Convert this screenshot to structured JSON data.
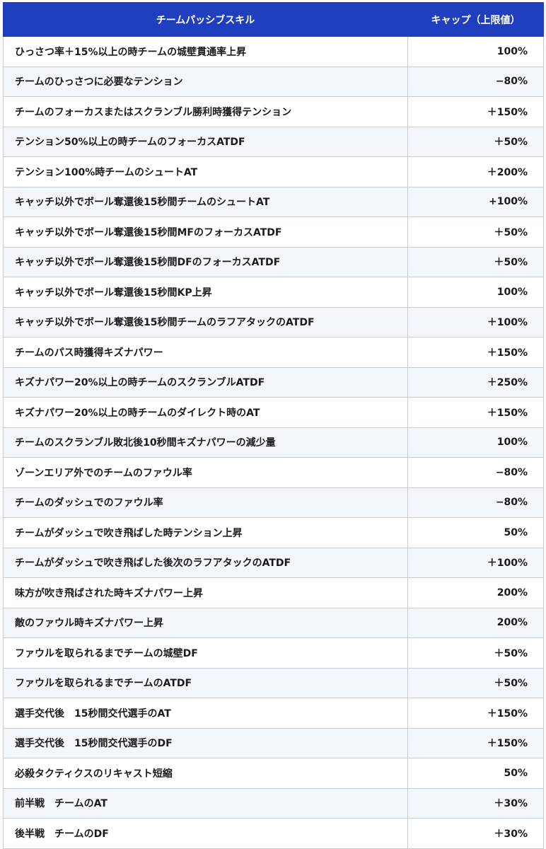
{
  "header": {
    "skill_label": "チームパッシブスキル",
    "cap_label": "キャップ（上限値）"
  },
  "colors": {
    "header_bg": "#1f3fbf",
    "header_text": "#ffffff",
    "row_alt": "#f3f6fb",
    "border": "#c9ccd3"
  },
  "rows": [
    {
      "skill": "ひっさつ率＋15%以上の時チームの城壁貫通率上昇",
      "cap": "100%"
    },
    {
      "skill": "チームのひっさつに必要なテンション",
      "cap": "−80%"
    },
    {
      "skill": "チームのフォーカスまたはスクランブル勝利時獲得テンション",
      "cap": "＋150%"
    },
    {
      "skill": "テンション50%以上の時チームのフォーカスATDF",
      "cap": "＋50%"
    },
    {
      "skill": "テンション100%時チームのシュートAT",
      "cap": "＋200%"
    },
    {
      "skill": "キャッチ以外でボール奪還後15秒間チームのシュートAT",
      "cap": "+100%"
    },
    {
      "skill": "キャッチ以外でボール奪還後15秒間MFのフォーカスATDF",
      "cap": "＋50%"
    },
    {
      "skill": "キャッチ以外でボール奪還後15秒間DFのフォーカスATDF",
      "cap": "＋50%"
    },
    {
      "skill": "キャッチ以外でボール奪還後15秒間KP上昇",
      "cap": "100%"
    },
    {
      "skill": "キャッチ以外でボール奪還後15秒間チームのラフアタックのATDF",
      "cap": "＋100%"
    },
    {
      "skill": "チームのパス時獲得キズナパワー",
      "cap": "＋150%"
    },
    {
      "skill": "キズナパワー20%以上の時チームのスクランブルATDF",
      "cap": "＋250%"
    },
    {
      "skill": "キズナパワー20%以上の時チームのダイレクト時のAT",
      "cap": "＋150%"
    },
    {
      "skill": "チームのスクランブル敗北後10秒間キズナパワーの減少量",
      "cap": "100%"
    },
    {
      "skill": "ゾーンエリア外でのチームのファウル率",
      "cap": "−80%"
    },
    {
      "skill": "チームのダッシュでのファウル率",
      "cap": "−80%"
    },
    {
      "skill": "チームがダッシュで吹き飛ばした時テンション上昇",
      "cap": "50%"
    },
    {
      "skill": "チームがダッシュで吹き飛ばした後次のラフアタックのATDF",
      "cap": "＋100%"
    },
    {
      "skill": "味方が吹き飛ばされた時キズナパワー上昇",
      "cap": "200%"
    },
    {
      "skill": "敵のファウル時キズナパワー上昇",
      "cap": "200%"
    },
    {
      "skill": "ファウルを取られるまでチームの城壁DF",
      "cap": "＋50%"
    },
    {
      "skill": "ファウルを取られるまでチームのATDF",
      "cap": "＋50%"
    },
    {
      "skill": "選手交代後　15秒間交代選手のAT",
      "cap": "＋150%"
    },
    {
      "skill": "選手交代後　15秒間交代選手のDF",
      "cap": "＋150%"
    },
    {
      "skill": "必殺タクティクスのリキャスト短縮",
      "cap": "50%"
    },
    {
      "skill": "前半戦　チームのAT",
      "cap": "＋30%"
    },
    {
      "skill": "後半戦　チームのDF",
      "cap": "＋30%"
    }
  ]
}
